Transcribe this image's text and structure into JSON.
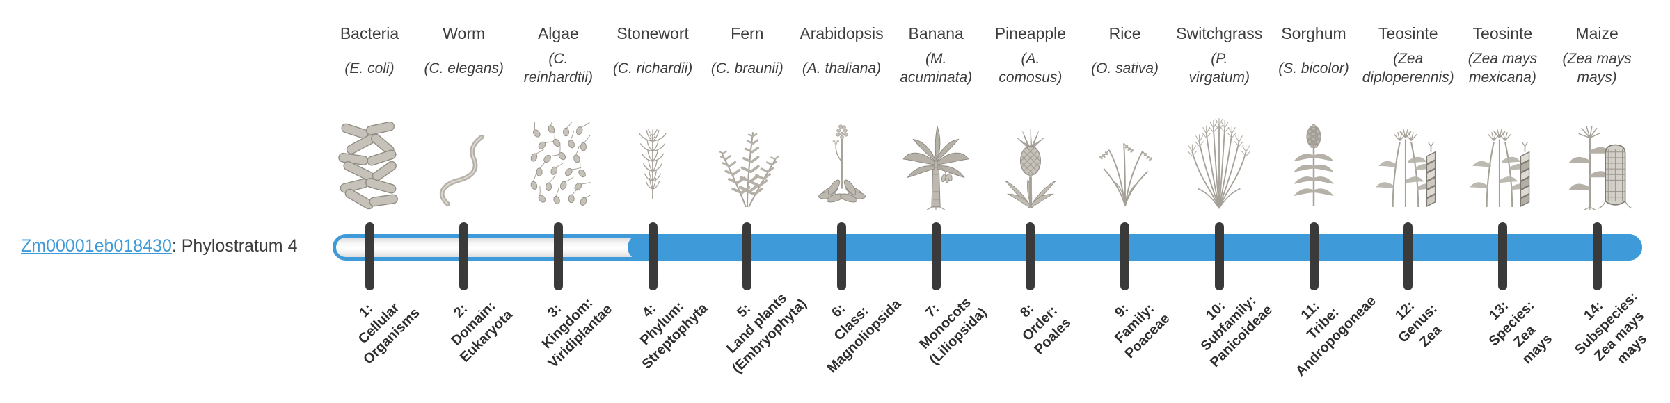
{
  "gene": {
    "id": "Zm00001eb018430",
    "suffix": ": Phylostratum 4",
    "link_color": "#3e9ad8",
    "text_color": "#3d3d3d"
  },
  "bar": {
    "fill_color": "#3e9ad8",
    "outline_color": "#3e9ad8",
    "tick_color": "#3a3a3a",
    "total_strata": 14,
    "filled_from_stratum": 4
  },
  "organisms": [
    {
      "name": "Bacteria",
      "sci": "(E. coli)",
      "icon": "bacteria-icon"
    },
    {
      "name": "Worm",
      "sci": "(C. elegans)",
      "icon": "worm-icon"
    },
    {
      "name": "Algae",
      "sci": "(C.\nreinhardtii)",
      "icon": "algae-icon"
    },
    {
      "name": "Stonewort",
      "sci": "(C. richardii)",
      "icon": "stonewort-icon"
    },
    {
      "name": "Fern",
      "sci": "(C. braunii)",
      "icon": "fern-icon"
    },
    {
      "name": "Arabidopsis",
      "sci": "(A. thaliana)",
      "icon": "arabidopsis-icon"
    },
    {
      "name": "Banana",
      "sci": "(M.\nacuminata)",
      "icon": "banana-icon"
    },
    {
      "name": "Pineapple",
      "sci": "(A.\ncomosus)",
      "icon": "pineapple-icon"
    },
    {
      "name": "Rice",
      "sci": "(O. sativa)",
      "icon": "rice-icon"
    },
    {
      "name": "Switchgrass",
      "sci": "(P.\nvirgatum)",
      "icon": "switchgrass-icon"
    },
    {
      "name": "Sorghum",
      "sci": "(S. bicolor)",
      "icon": "sorghum-icon"
    },
    {
      "name": "Teosinte",
      "sci": "(Zea\ndiploperennis)",
      "icon": "teosinte-icon"
    },
    {
      "name": "Teosinte",
      "sci": "(Zea mays\nmexicana)",
      "icon": "teosinte2-icon"
    },
    {
      "name": "Maize",
      "sci": "(Zea mays\nmays)",
      "icon": "maize-icon"
    }
  ],
  "phylostrata": [
    {
      "lines": [
        "1:",
        "Cellular",
        "Organisms"
      ]
    },
    {
      "lines": [
        "2:",
        "Domain:",
        "Eukaryota"
      ]
    },
    {
      "lines": [
        "3:",
        "Kingdom:",
        "Viridiplantae"
      ]
    },
    {
      "lines": [
        "4:",
        "Phylum:",
        "Streptophyta"
      ]
    },
    {
      "lines": [
        "5:",
        "Land plants",
        "(Embryophyta)"
      ]
    },
    {
      "lines": [
        "6:",
        "Class:",
        "Magnoliopsida"
      ]
    },
    {
      "lines": [
        "7:",
        "Monocots",
        "(Liliopsida)"
      ]
    },
    {
      "lines": [
        "8:",
        "Order:",
        "Poales"
      ]
    },
    {
      "lines": [
        "9:",
        "Family:",
        "Poaceae"
      ]
    },
    {
      "lines": [
        "10:",
        "Subfamily:",
        "Panicoideae"
      ]
    },
    {
      "lines": [
        "11:",
        "Tribe:",
        "Andropogoneae"
      ]
    },
    {
      "lines": [
        "12:",
        "Genus:",
        "Zea"
      ]
    },
    {
      "lines": [
        "13:",
        "Species:",
        "Zea",
        "mays"
      ]
    },
    {
      "lines": [
        "14:",
        "Subspecies:",
        "Zea mays",
        "mays"
      ]
    }
  ]
}
